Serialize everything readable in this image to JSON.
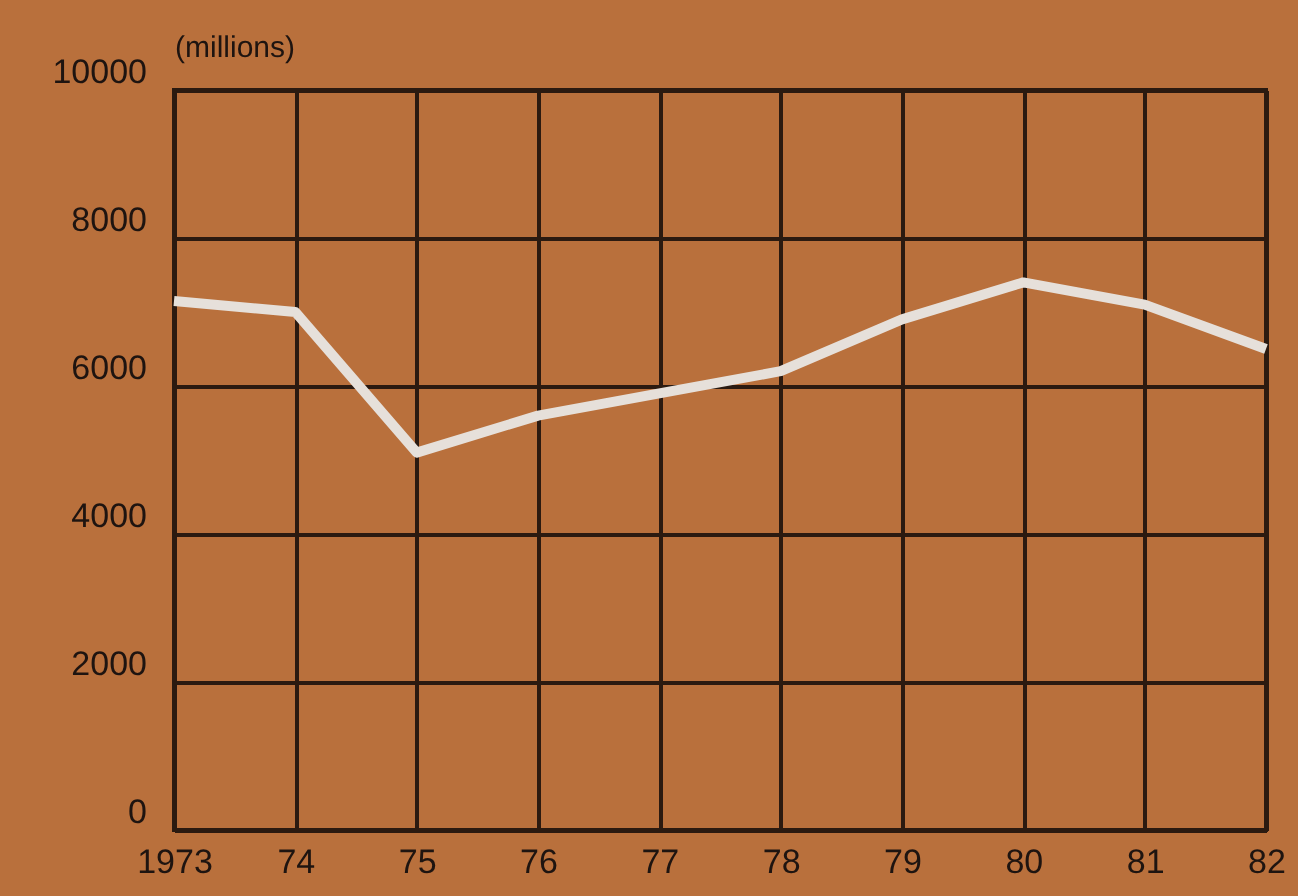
{
  "chart_data": {
    "type": "line",
    "ylabel": "(millions)",
    "categories": [
      "1973",
      "74",
      "75",
      "76",
      "77",
      "78",
      "79",
      "80",
      "81",
      "82"
    ],
    "series": [
      {
        "color": "#e6e0da",
        "values": [
          7150,
          7000,
          5100,
          5600,
          5900,
          6200,
          6900,
          7400,
          7100,
          6500
        ]
      }
    ],
    "ylim": [
      0,
      10000
    ],
    "yticks": [
      0,
      2000,
      4000,
      6000,
      8000,
      10000
    ],
    "grid": true,
    "marker": "none",
    "line_style": "solid"
  }
}
